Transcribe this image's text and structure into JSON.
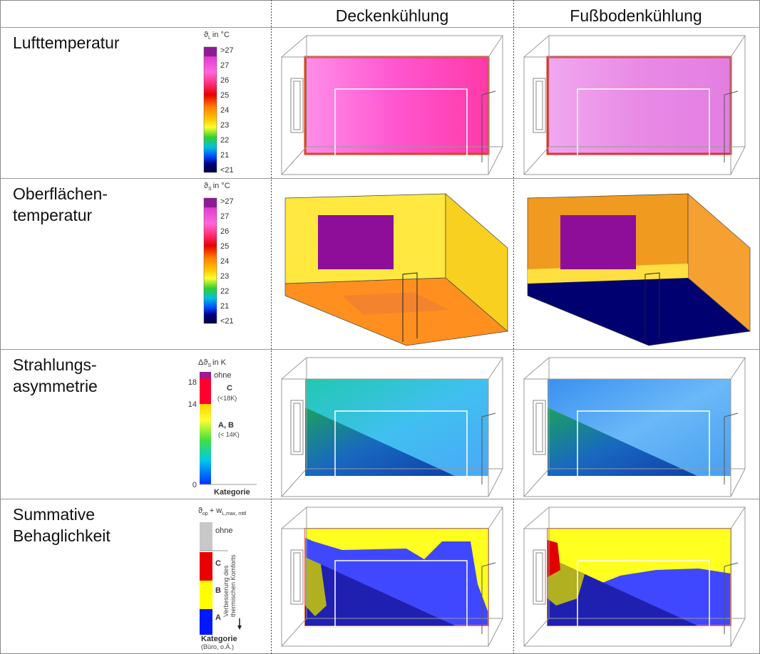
{
  "header": {
    "columns": [
      "Deckenkühlung",
      "Fußbodenkühlung"
    ]
  },
  "rows": [
    {
      "label": [
        "Lufttemperatur"
      ],
      "legend": {
        "title": [
          {
            "text": "ϑ"
          },
          {
            "sub": "L"
          },
          {
            "text": "in °C"
          }
        ],
        "ticks": [
          ">27",
          "27",
          "26",
          "25",
          "24",
          "23",
          "22",
          "21",
          "<21"
        ]
      }
    },
    {
      "label": [
        "Oberflächen-",
        "temperatur"
      ],
      "legend": {
        "title": [
          {
            "text": "ϑ"
          },
          {
            "sub": "S"
          },
          {
            "text": "in °C"
          }
        ],
        "ticks": [
          ">27",
          "27",
          "26",
          "25",
          "24",
          "23",
          "22",
          "21",
          "<21"
        ]
      }
    },
    {
      "label": [
        "Strahlungs-",
        "asymmetrie"
      ],
      "legend": {
        "title": [
          {
            "text": "Δϑ"
          },
          {
            "sub": "S"
          },
          {
            "text": "in K"
          }
        ],
        "ticks": [
          18,
          14,
          0
        ],
        "labels": [
          "ohne",
          "C",
          "(<18K)",
          "A, B",
          "(< 14K)"
        ],
        "footer": [
          "Kategorie"
        ]
      }
    },
    {
      "label": [
        "Summative",
        "Behaglichkeit"
      ],
      "legend": {
        "title": [
          {
            "text": "ϑ"
          },
          {
            "sub": "op"
          },
          {
            "text": "+ w"
          },
          {
            "sub": "L,max, mttl"
          }
        ],
        "labels": [
          "ohne",
          "C",
          "B",
          "A"
        ],
        "arrow_text": [
          "Verbesserung des",
          "thermischen Komforts"
        ],
        "footer": [
          "Kategorie",
          "(Büro, o.Ä.)"
        ]
      }
    }
  ]
}
